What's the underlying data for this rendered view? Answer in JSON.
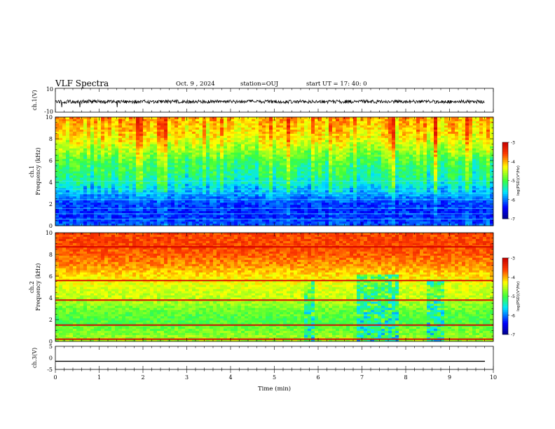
{
  "header": {
    "title": "VLF Spectra",
    "date": "Oct. 9 , 2024",
    "station": "station=OUJ",
    "start": "start UT =  17: 40: 0"
  },
  "chart_data": [
    {
      "type": "line",
      "panel": "ch1-waveform",
      "ylabel": "ch.1(V)",
      "ylim": [
        -10,
        10
      ],
      "y_ticks": [
        "10",
        "-10"
      ],
      "xlim": [
        0,
        10
      ],
      "series": [
        {
          "values_description_free": true,
          "baseline": 0,
          "amplitude": 1.5
        }
      ]
    },
    {
      "type": "heatmap",
      "panel": "ch1-spectrogram",
      "ylabel": "ch.1\nFrequency (kHz)",
      "ylabel_line1": "ch.1",
      "ylabel_line2": "Frequency (kHz)",
      "ylim": [
        0,
        10
      ],
      "y_ticks": [
        "0",
        "2",
        "4",
        "6",
        "8",
        "10"
      ],
      "xlim": [
        0,
        10
      ],
      "colorbar": {
        "label": "log(PSD)(V²/Hz)",
        "range": [
          -7,
          -3
        ],
        "ticks": [
          "-7",
          "-6",
          "-5",
          "-4",
          "-3"
        ],
        "colormap": [
          "#00008b",
          "#0000ff",
          "#00ffff",
          "#00ff00",
          "#ffff00",
          "#ff0000",
          "#ffffff"
        ]
      },
      "profile_levels": [
        {
          "f": 0.0,
          "level": -6.1
        },
        {
          "f": 1.0,
          "level": -6.3
        },
        {
          "f": 2.0,
          "level": -6.2
        },
        {
          "f": 3.0,
          "level": -5.8
        },
        {
          "f": 4.0,
          "level": -5.4
        },
        {
          "f": 5.0,
          "level": -5.2
        },
        {
          "f": 6.0,
          "level": -5.0
        },
        {
          "f": 7.0,
          "level": -4.6
        },
        {
          "f": 8.0,
          "level": -4.3
        },
        {
          "f": 9.0,
          "level": -4.1
        },
        {
          "f": 10.0,
          "level": -4.0
        }
      ]
    },
    {
      "type": "heatmap",
      "panel": "ch2-spectrogram",
      "ylabel_line1": "ch.2",
      "ylabel_line2": "Frequency (kHz)",
      "ylim": [
        0,
        10
      ],
      "y_ticks": [
        "0",
        "2",
        "4",
        "6",
        "8",
        "10"
      ],
      "xlim": [
        0,
        10
      ],
      "colorbar": {
        "label": "log(PSD)(V²/Hz)",
        "range": [
          -7,
          -3
        ],
        "ticks": [
          "-7",
          "-6",
          "-5",
          "-4",
          "-3"
        ]
      },
      "profile_levels": [
        {
          "f": 0.0,
          "level": -4.6
        },
        {
          "f": 1.0,
          "level": -4.8
        },
        {
          "f": 2.0,
          "level": -5.0
        },
        {
          "f": 3.0,
          "level": -4.8
        },
        {
          "f": 4.0,
          "level": -4.5
        },
        {
          "f": 5.0,
          "level": -4.4
        },
        {
          "f": 6.0,
          "level": -4.2
        },
        {
          "f": 7.0,
          "level": -3.9
        },
        {
          "f": 8.0,
          "level": -3.7
        },
        {
          "f": 9.0,
          "level": -3.6
        },
        {
          "f": 10.0,
          "level": -3.6
        }
      ],
      "red_lines_khz": [
        0.2,
        1.5,
        3.8,
        5.6,
        8.7
      ],
      "gaps_min": [
        [
          5.65,
          5.9
        ],
        [
          6.9,
          7.85
        ],
        [
          8.5,
          8.85
        ]
      ],
      "gap_top_khz": [
        5.6,
        6.2,
        5.6
      ]
    },
    {
      "type": "line",
      "panel": "ch3-waveform",
      "ylabel": "ch.3(V)",
      "ylim": [
        -5,
        5
      ],
      "y_ticks": [
        "5",
        "0",
        "-5"
      ],
      "xlim": [
        0,
        10
      ],
      "series": [
        {
          "baseline": -1.5
        }
      ]
    }
  ],
  "xaxis": {
    "label": "Time (min)",
    "ticks": [
      "0",
      "1",
      "2",
      "3",
      "4",
      "5",
      "6",
      "7",
      "8",
      "9",
      "10"
    ]
  }
}
